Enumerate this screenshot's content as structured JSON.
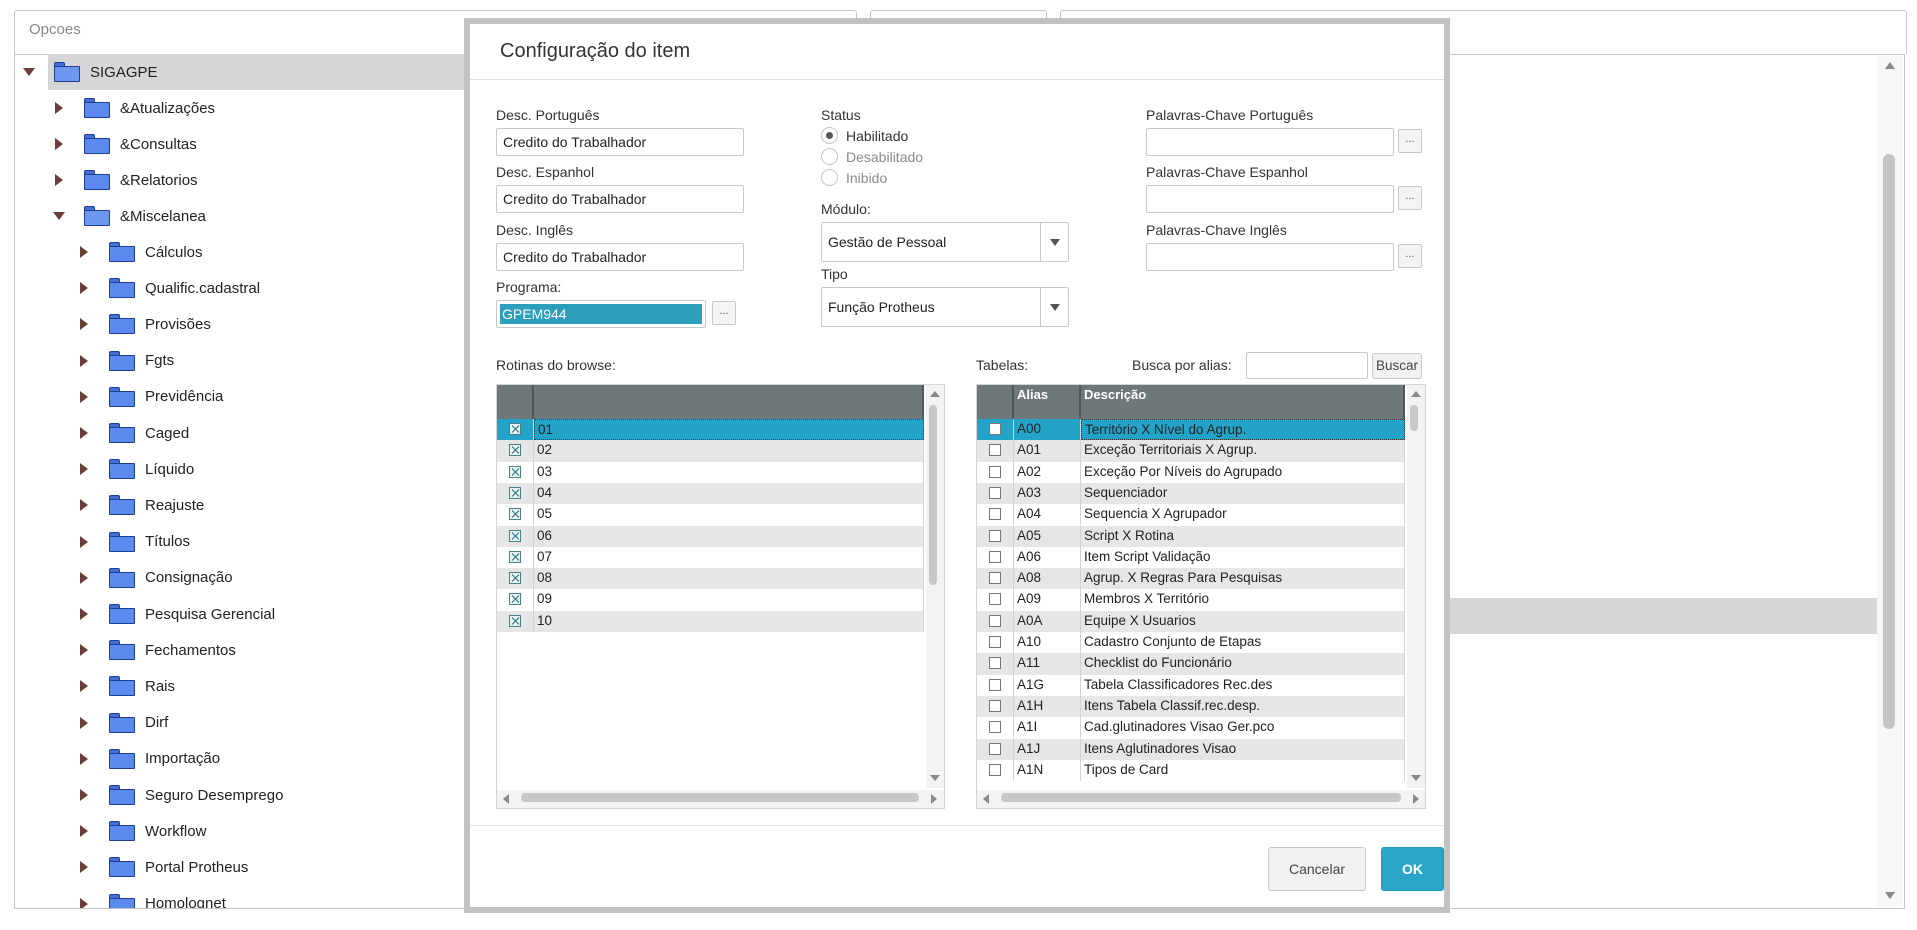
{
  "top_panel": {
    "label": "Opcoes"
  },
  "tree": {
    "root": "SIGAGPE",
    "level1": [
      {
        "label": "&Atualizações",
        "expanded": false
      },
      {
        "label": "&Consultas",
        "expanded": false
      },
      {
        "label": "&Relatorios",
        "expanded": false
      },
      {
        "label": "&Miscelanea",
        "expanded": true
      }
    ],
    "level2": [
      "Cálculos",
      "Qualific.cadastral",
      "Provisões",
      "Fgts",
      "Previdência",
      "Caged",
      "Líquido",
      "Reajuste",
      "Títulos",
      "Consignação",
      "Pesquisa Gerencial",
      "Fechamentos",
      "Rais",
      "Dirf",
      "Importação",
      "Seguro Desemprego",
      "Workflow",
      "Portal Protheus",
      "Homolognet"
    ]
  },
  "dialog": {
    "title": "Configuração do item",
    "desc_pt_label": "Desc. Português",
    "desc_pt_value": "Credito do Trabalhador",
    "desc_es_label": "Desc. Espanhol",
    "desc_es_value": "Credito do Trabalhador",
    "desc_en_label": "Desc. Inglês",
    "desc_en_value": "Credito do Trabalhador",
    "programa_label": "Programa:",
    "programa_value": "GPEM944",
    "dots": "...",
    "status_label": "Status",
    "status_options": [
      "Habilitado",
      "Desabilitado",
      "Inibido"
    ],
    "status_selected": "Habilitado",
    "modulo_label": "Módulo:",
    "modulo_value": "Gestão de Pessoal",
    "tipo_label": "Tipo",
    "tipo_value": "Função Protheus",
    "kw_pt_label": "Palavras-Chave Português",
    "kw_es_label": "Palavras-Chave Espanhol",
    "kw_en_label": "Palavras-Chave Inglês",
    "rotinas_label": "Rotinas do browse:",
    "tabelas_label": "Tabelas:",
    "busca_label": "Busca por alias:",
    "buscar_button": "Buscar",
    "cancel_button": "Cancelar",
    "ok_button": "OK"
  },
  "rotinas": {
    "rows": [
      {
        "code": "01",
        "checked": true
      },
      {
        "code": "02",
        "checked": true
      },
      {
        "code": "03",
        "checked": true
      },
      {
        "code": "04",
        "checked": true
      },
      {
        "code": "05",
        "checked": true
      },
      {
        "code": "06",
        "checked": true
      },
      {
        "code": "07",
        "checked": true
      },
      {
        "code": "08",
        "checked": true
      },
      {
        "code": "09",
        "checked": true
      },
      {
        "code": "10",
        "checked": true
      }
    ]
  },
  "tabelas": {
    "columns": [
      "Alias",
      "Descrição"
    ],
    "rows": [
      {
        "alias": "A00",
        "desc": "Território X Nível do Agrup."
      },
      {
        "alias": "A01",
        "desc": "Exceção Territoriais X Agrup."
      },
      {
        "alias": "A02",
        "desc": "Exceção Por Níveis do Agrupado"
      },
      {
        "alias": "A03",
        "desc": "Sequenciador"
      },
      {
        "alias": "A04",
        "desc": "Sequencia X Agrupador"
      },
      {
        "alias": "A05",
        "desc": "Script X Rotina"
      },
      {
        "alias": "A06",
        "desc": "Item Script Validação"
      },
      {
        "alias": "A08",
        "desc": "Agrup. X Regras Para Pesquisas"
      },
      {
        "alias": "A09",
        "desc": "Membros X Território"
      },
      {
        "alias": "A0A",
        "desc": "Equipe X Usuarios"
      },
      {
        "alias": "A10",
        "desc": "Cadastro Conjunto de Etapas"
      },
      {
        "alias": "A11",
        "desc": "Checklist do Funcionário"
      },
      {
        "alias": "A1G",
        "desc": "Tabela Classificadores Rec.des"
      },
      {
        "alias": "A1H",
        "desc": "Itens Tabela Classif.rec.desp."
      },
      {
        "alias": "A1I",
        "desc": "Cad.glutinadores Visao Ger.pco"
      },
      {
        "alias": "A1J",
        "desc": "Itens Aglutinadores Visao"
      },
      {
        "alias": "A1N",
        "desc": "Tipos de Card"
      }
    ]
  }
}
